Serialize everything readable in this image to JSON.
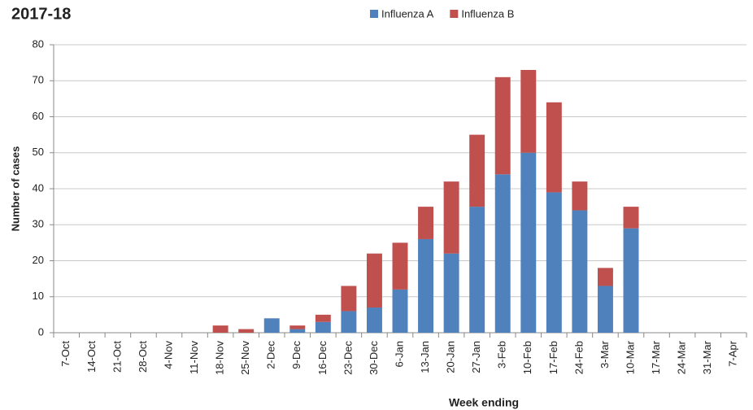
{
  "chart_data": {
    "type": "stacked_bar",
    "title": "2017-18",
    "x_label": "Week ending",
    "y_label": "Number of cases",
    "categories": [
      "7-Oct",
      "14-Oct",
      "21-Oct",
      "28-Oct",
      "4-Nov",
      "11-Nov",
      "18-Nov",
      "25-Nov",
      "2-Dec",
      "9-Dec",
      "16-Dec",
      "23-Dec",
      "30-Dec",
      "6-Jan",
      "13-Jan",
      "20-Jan",
      "27-Jan",
      "3-Feb",
      "10-Feb",
      "17-Feb",
      "24-Feb",
      "3-Mar",
      "10-Mar",
      "17-Mar",
      "24-Mar",
      "31-Mar",
      "7-Apr"
    ],
    "series": [
      {
        "name": "Influenza A",
        "color": "#4f81bd",
        "values": [
          0,
          0,
          0,
          0,
          0,
          0,
          0,
          0,
          4,
          1,
          3,
          6,
          7,
          12,
          26,
          22,
          35,
          44,
          50,
          39,
          34,
          13,
          29,
          0,
          0,
          0,
          0
        ]
      },
      {
        "name": "Influenza B",
        "color": "#c0504d",
        "values": [
          0,
          0,
          0,
          0,
          0,
          0,
          2,
          1,
          0,
          1,
          2,
          7,
          15,
          13,
          9,
          20,
          20,
          27,
          23,
          25,
          8,
          5,
          6,
          0,
          0,
          0,
          0
        ]
      }
    ],
    "ylim": [
      0,
      80
    ],
    "yticks": [
      0,
      10,
      20,
      30,
      40,
      50,
      60,
      70,
      80
    ],
    "grid": true,
    "legend": "top"
  }
}
